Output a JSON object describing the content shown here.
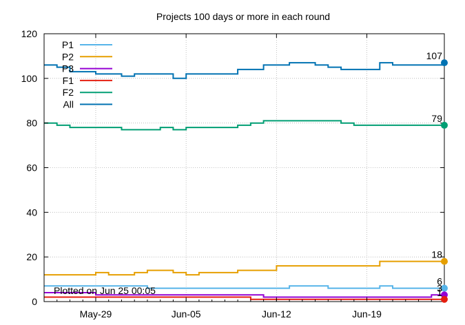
{
  "chart_data": {
    "type": "line",
    "title": "Projects 100 days or more in each round",
    "xlabel": "",
    "ylabel": "",
    "ylim": [
      0,
      120
    ],
    "yticks": [
      0,
      20,
      40,
      60,
      80,
      100,
      120
    ],
    "x_range": [
      "2025-05-25",
      "2025-06-25"
    ],
    "xticks": [
      {
        "date": "2025-05-29",
        "label": "May-29"
      },
      {
        "date": "2025-06-05",
        "label": "Jun-05"
      },
      {
        "date": "2025-06-12",
        "label": "Jun-12"
      },
      {
        "date": "2025-06-19",
        "label": "Jun-19"
      }
    ],
    "grid": true,
    "legend": "top-left",
    "annotation": "Plotted on Jun 25 00:05",
    "series": [
      {
        "name": "P1",
        "color": "#56b4e9",
        "x": [
          "2025-05-25",
          "2025-05-26",
          "2025-05-27",
          "2025-05-28",
          "2025-05-29",
          "2025-05-30",
          "2025-05-31",
          "2025-06-01",
          "2025-06-02",
          "2025-06-03",
          "2025-06-04",
          "2025-06-05",
          "2025-06-06",
          "2025-06-07",
          "2025-06-08",
          "2025-06-09",
          "2025-06-10",
          "2025-06-11",
          "2025-06-12",
          "2025-06-13",
          "2025-06-14",
          "2025-06-15",
          "2025-06-16",
          "2025-06-17",
          "2025-06-18",
          "2025-06-19",
          "2025-06-20",
          "2025-06-21",
          "2025-06-22",
          "2025-06-23",
          "2025-06-24",
          "2025-06-25"
        ],
        "y": [
          7,
          7,
          7,
          7,
          7,
          7,
          7,
          7,
          6,
          6,
          6,
          6,
          6,
          6,
          6,
          6,
          6,
          6,
          6,
          7,
          7,
          7,
          6,
          6,
          6,
          6,
          7,
          6,
          6,
          6,
          6,
          6
        ],
        "end_label": "6"
      },
      {
        "name": "P2",
        "color": "#e69f00",
        "x": [
          "2025-05-25",
          "2025-05-26",
          "2025-05-27",
          "2025-05-28",
          "2025-05-29",
          "2025-05-30",
          "2025-05-31",
          "2025-06-01",
          "2025-06-02",
          "2025-06-03",
          "2025-06-04",
          "2025-06-05",
          "2025-06-06",
          "2025-06-07",
          "2025-06-08",
          "2025-06-09",
          "2025-06-10",
          "2025-06-11",
          "2025-06-12",
          "2025-06-13",
          "2025-06-14",
          "2025-06-15",
          "2025-06-16",
          "2025-06-17",
          "2025-06-18",
          "2025-06-19",
          "2025-06-20",
          "2025-06-21",
          "2025-06-22",
          "2025-06-23",
          "2025-06-24",
          "2025-06-25"
        ],
        "y": [
          12,
          12,
          12,
          12,
          13,
          12,
          12,
          13,
          14,
          14,
          13,
          12,
          13,
          13,
          13,
          14,
          14,
          14,
          16,
          16,
          16,
          16,
          16,
          16,
          16,
          16,
          18,
          18,
          18,
          18,
          18,
          18
        ],
        "end_label": "18"
      },
      {
        "name": "P3",
        "color": "#9400d3",
        "x": [
          "2025-05-25",
          "2025-05-26",
          "2025-05-27",
          "2025-05-28",
          "2025-05-29",
          "2025-05-30",
          "2025-05-31",
          "2025-06-01",
          "2025-06-02",
          "2025-06-03",
          "2025-06-04",
          "2025-06-05",
          "2025-06-06",
          "2025-06-07",
          "2025-06-08",
          "2025-06-09",
          "2025-06-10",
          "2025-06-11",
          "2025-06-12",
          "2025-06-13",
          "2025-06-14",
          "2025-06-15",
          "2025-06-16",
          "2025-06-17",
          "2025-06-18",
          "2025-06-19",
          "2025-06-20",
          "2025-06-21",
          "2025-06-22",
          "2025-06-23",
          "2025-06-24",
          "2025-06-25"
        ],
        "y": [
          4,
          4,
          4,
          4,
          3,
          3,
          3,
          3,
          3,
          3,
          3,
          3,
          3,
          3,
          3,
          3,
          3,
          2,
          2,
          2,
          2,
          2,
          2,
          2,
          2,
          2,
          2,
          2,
          2,
          2,
          3,
          3
        ],
        "end_label": "3"
      },
      {
        "name": "F1",
        "color": "#e51e10",
        "x": [
          "2025-05-25",
          "2025-05-26",
          "2025-05-27",
          "2025-05-28",
          "2025-05-29",
          "2025-05-30",
          "2025-05-31",
          "2025-06-01",
          "2025-06-02",
          "2025-06-03",
          "2025-06-04",
          "2025-06-05",
          "2025-06-06",
          "2025-06-07",
          "2025-06-08",
          "2025-06-09",
          "2025-06-10",
          "2025-06-11",
          "2025-06-12",
          "2025-06-13",
          "2025-06-14",
          "2025-06-15",
          "2025-06-16",
          "2025-06-17",
          "2025-06-18",
          "2025-06-19",
          "2025-06-20",
          "2025-06-21",
          "2025-06-22",
          "2025-06-23",
          "2025-06-24",
          "2025-06-25"
        ],
        "y": [
          2,
          2,
          2,
          2,
          2,
          2,
          2,
          2,
          2,
          2,
          2,
          2,
          2,
          2,
          2,
          2,
          1,
          1,
          1,
          1,
          1,
          1,
          1,
          1,
          1,
          1,
          1,
          1,
          1,
          1,
          1,
          1
        ],
        "end_label": "1"
      },
      {
        "name": "F2",
        "color": "#009e73",
        "x": [
          "2025-05-25",
          "2025-05-26",
          "2025-05-27",
          "2025-05-28",
          "2025-05-29",
          "2025-05-30",
          "2025-05-31",
          "2025-06-01",
          "2025-06-02",
          "2025-06-03",
          "2025-06-04",
          "2025-06-05",
          "2025-06-06",
          "2025-06-07",
          "2025-06-08",
          "2025-06-09",
          "2025-06-10",
          "2025-06-11",
          "2025-06-12",
          "2025-06-13",
          "2025-06-14",
          "2025-06-15",
          "2025-06-16",
          "2025-06-17",
          "2025-06-18",
          "2025-06-19",
          "2025-06-20",
          "2025-06-21",
          "2025-06-22",
          "2025-06-23",
          "2025-06-24",
          "2025-06-25"
        ],
        "y": [
          80,
          79,
          78,
          78,
          78,
          78,
          77,
          77,
          77,
          78,
          77,
          78,
          78,
          78,
          78,
          79,
          80,
          81,
          81,
          81,
          81,
          81,
          81,
          80,
          79,
          79,
          79,
          79,
          79,
          79,
          79,
          79
        ],
        "end_label": "79"
      },
      {
        "name": "All",
        "color": "#0072b2",
        "x": [
          "2025-05-25",
          "2025-05-26",
          "2025-05-27",
          "2025-05-28",
          "2025-05-29",
          "2025-05-30",
          "2025-05-31",
          "2025-06-01",
          "2025-06-02",
          "2025-06-03",
          "2025-06-04",
          "2025-06-05",
          "2025-06-06",
          "2025-06-07",
          "2025-06-08",
          "2025-06-09",
          "2025-06-10",
          "2025-06-11",
          "2025-06-12",
          "2025-06-13",
          "2025-06-14",
          "2025-06-15",
          "2025-06-16",
          "2025-06-17",
          "2025-06-18",
          "2025-06-19",
          "2025-06-20",
          "2025-06-21",
          "2025-06-22",
          "2025-06-23",
          "2025-06-24",
          "2025-06-25"
        ],
        "y": [
          106,
          105,
          103,
          103,
          102,
          102,
          101,
          102,
          102,
          102,
          100,
          102,
          102,
          102,
          102,
          104,
          104,
          106,
          106,
          107,
          107,
          106,
          105,
          104,
          104,
          104,
          107,
          106,
          106,
          106,
          106,
          107
        ],
        "end_label": "107"
      }
    ]
  }
}
